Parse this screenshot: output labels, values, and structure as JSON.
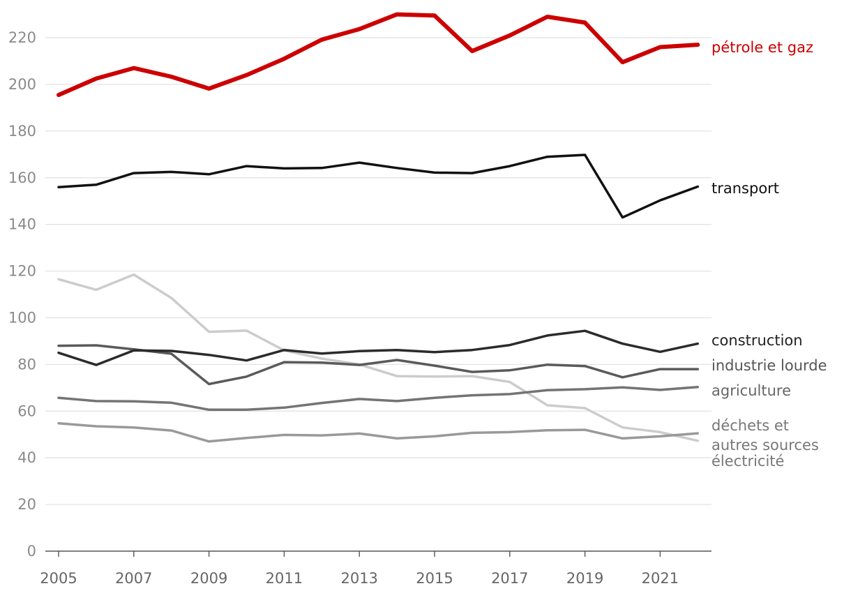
{
  "chart_data": {
    "type": "line",
    "title": "",
    "xlabel": "",
    "ylabel": "",
    "ylim": [
      0,
      230
    ],
    "yticks": [
      0,
      20,
      40,
      60,
      80,
      100,
      120,
      140,
      160,
      180,
      200,
      220
    ],
    "xtick_labels": [
      "2005",
      "2007",
      "2009",
      "2011",
      "2013",
      "2015",
      "2017",
      "2019",
      "2021"
    ],
    "grid": true,
    "x": [
      2005,
      2006,
      2007,
      2008,
      2009,
      2010,
      2011,
      2012,
      2013,
      2014,
      2015,
      2016,
      2017,
      2018,
      2019,
      2020,
      2021,
      2022
    ],
    "series": [
      {
        "id": "electricite",
        "name": "électricité",
        "color": "#cccccc",
        "label_color": "#777777",
        "width": 3.5,
        "values": [
          116.5,
          112,
          118.5,
          108.5,
          94,
          94.5,
          86,
          82.5,
          80,
          75,
          74.8,
          75,
          72.5,
          62.5,
          61.3,
          53,
          51,
          47.3
        ]
      },
      {
        "id": "dechets",
        "name": "déchets et autres sources",
        "label_lines": [
          "déchets et",
          "autres sources"
        ],
        "color": "#999999",
        "label_color": "#777777",
        "width": 3.5,
        "values": [
          54.8,
          53.5,
          53,
          51.7,
          47,
          48.5,
          49.8,
          49.6,
          50.4,
          48.3,
          49.2,
          50.7,
          51,
          51.8,
          52,
          48.3,
          49.2,
          50.5
        ]
      },
      {
        "id": "agriculture",
        "name": "agriculture",
        "color": "#747474",
        "label_color": "#666666",
        "width": 3.5,
        "values": [
          65.7,
          64.3,
          64.2,
          63.6,
          60.6,
          60.6,
          61.5,
          63.5,
          65.2,
          64.3,
          65.7,
          66.8,
          67.3,
          69,
          69.4,
          70.2,
          69.1,
          70.3
        ]
      },
      {
        "id": "industrie",
        "name": "industrie lourde",
        "color": "#5a5a5a",
        "label_color": "#555555",
        "width": 3.5,
        "values": [
          88,
          88.2,
          86.5,
          84.6,
          71.6,
          74.8,
          81,
          80.8,
          79.8,
          81.9,
          79.5,
          76.8,
          77.5,
          79.9,
          79.3,
          74.5,
          78,
          78
        ]
      },
      {
        "id": "construction",
        "name": "construction",
        "color": "#2b2b2b",
        "label_color": "#222222",
        "width": 3.5,
        "values": [
          85,
          79.8,
          86,
          85.8,
          84.1,
          81.7,
          86.2,
          84.7,
          85.7,
          86.2,
          85.3,
          86.2,
          88.3,
          92.4,
          94.4,
          88.9,
          85.4,
          88.9
        ]
      },
      {
        "id": "transport",
        "name": "transport",
        "color": "#111111",
        "label_color": "#111111",
        "width": 3.5,
        "values": [
          156,
          157,
          162,
          162.5,
          161.5,
          165,
          164,
          164.2,
          166.5,
          164.2,
          162.2,
          162,
          165,
          169,
          169.8,
          143,
          150.3,
          156.2
        ]
      },
      {
        "id": "petrole",
        "name": "pétrole et gaz",
        "color": "#cc0000",
        "label_color": "#cc0000",
        "width": 6,
        "values": [
          195.5,
          202.5,
          207,
          203.3,
          198.2,
          204,
          211,
          219.2,
          223.7,
          230,
          229.5,
          214.3,
          221,
          229,
          226.5,
          209.5,
          216,
          217
        ]
      }
    ]
  }
}
